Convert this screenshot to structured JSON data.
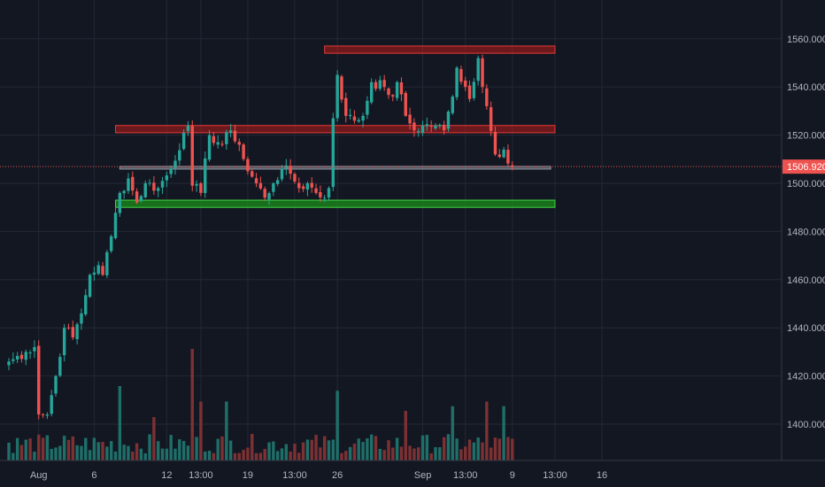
{
  "chart_data": {
    "type": "candlestick",
    "instrument_note": "",
    "y_axis": {
      "ticks": [
        1400,
        1420,
        1440,
        1460,
        1480,
        1500,
        1520,
        1540,
        1560
      ],
      "tick_labels": [
        "1400.000",
        "1420.000",
        "1440.000",
        "1460.000",
        "1480.000",
        "1500.000",
        "1520.000",
        "1540.000",
        "1560.000"
      ],
      "range": [
        1381,
        1578
      ],
      "position": "right"
    },
    "x_axis": {
      "labels": [
        {
          "i": 7,
          "text": "Aug"
        },
        {
          "i": 20,
          "text": "6"
        },
        {
          "i": 37,
          "text": "12"
        },
        {
          "i": 45,
          "text": "13:00"
        },
        {
          "i": 56,
          "text": "19"
        },
        {
          "i": 67,
          "text": "13:00"
        },
        {
          "i": 77,
          "text": "26"
        },
        {
          "i": 97,
          "text": "Sep"
        },
        {
          "i": 107,
          "text": "13:00"
        },
        {
          "i": 118,
          "text": "9"
        },
        {
          "i": 128,
          "text": "13:00"
        },
        {
          "i": 139,
          "text": "16"
        }
      ],
      "bar_count": 158
    },
    "last_price": 1506.92,
    "last_price_label": "1506.920",
    "colors": {
      "background": "#131722",
      "grid": "#242836",
      "up": "#26a69a",
      "down": "#ef5350",
      "up_volume": "#1f6f69",
      "down_volume": "#7d3133",
      "last_price": "#ef5350",
      "resistance_zone": "#b71c1c",
      "support_zone": "#1b8f1b",
      "mid_zone": "#787b86"
    },
    "zones": [
      {
        "name": "top-resistance-zone",
        "kind": "resistance",
        "from_i": 74,
        "to_i": 128,
        "y_low": 1554,
        "y_high": 1557
      },
      {
        "name": "mid-resistance-zone",
        "kind": "resistance",
        "from_i": 25,
        "to_i": 128,
        "y_low": 1521,
        "y_high": 1524
      },
      {
        "name": "pivot-zone",
        "kind": "neutral",
        "from_i": 26,
        "to_i": 127,
        "y_low": 1506,
        "y_high": 1507
      },
      {
        "name": "support-zone",
        "kind": "support",
        "from_i": 25,
        "to_i": 128,
        "y_low": 1490,
        "y_high": 1493
      }
    ],
    "anchors": [
      [
        0,
        1426
      ],
      [
        4,
        1430
      ],
      [
        6,
        1432
      ],
      [
        7,
        1404
      ],
      [
        9,
        1404
      ],
      [
        11,
        1420
      ],
      [
        13,
        1440
      ],
      [
        15,
        1436
      ],
      [
        17,
        1446
      ],
      [
        19,
        1462
      ],
      [
        21,
        1466
      ],
      [
        22,
        1462
      ],
      [
        24,
        1478
      ],
      [
        26,
        1496
      ],
      [
        28,
        1502
      ],
      [
        30,
        1492
      ],
      [
        32,
        1500
      ],
      [
        35,
        1498
      ],
      [
        38,
        1506
      ],
      [
        41,
        1521
      ],
      [
        42,
        1524
      ],
      [
        43,
        1499
      ],
      [
        45,
        1496
      ],
      [
        47,
        1520
      ],
      [
        50,
        1516
      ],
      [
        52,
        1522
      ],
      [
        54,
        1516
      ],
      [
        56,
        1505
      ],
      [
        58,
        1500
      ],
      [
        60,
        1494
      ],
      [
        62,
        1500
      ],
      [
        64,
        1506
      ],
      [
        66,
        1504
      ],
      [
        68,
        1498
      ],
      [
        70,
        1500
      ],
      [
        72,
        1496
      ],
      [
        74,
        1494
      ],
      [
        75,
        1498
      ],
      [
        76,
        1527
      ],
      [
        77,
        1545
      ],
      [
        79,
        1528
      ],
      [
        81,
        1526
      ],
      [
        83,
        1528
      ],
      [
        85,
        1542
      ],
      [
        88,
        1540
      ],
      [
        90,
        1536
      ],
      [
        91,
        1542
      ],
      [
        93,
        1528
      ],
      [
        95,
        1522
      ],
      [
        97,
        1524
      ],
      [
        100,
        1524
      ],
      [
        102,
        1522
      ],
      [
        104,
        1536
      ],
      [
        105,
        1548
      ],
      [
        107,
        1540
      ],
      [
        108,
        1535
      ],
      [
        110,
        1552
      ],
      [
        111,
        1540
      ],
      [
        112,
        1532
      ],
      [
        114,
        1512
      ],
      [
        116,
        1514
      ],
      [
        118,
        1506.9
      ]
    ],
    "volume_spikes": [
      [
        43,
        72
      ],
      [
        26,
        48
      ],
      [
        45,
        38
      ],
      [
        77,
        45
      ],
      [
        51,
        38
      ],
      [
        112,
        38
      ],
      [
        104,
        35
      ],
      [
        116,
        35
      ],
      [
        93,
        32
      ],
      [
        34,
        28
      ]
    ]
  }
}
